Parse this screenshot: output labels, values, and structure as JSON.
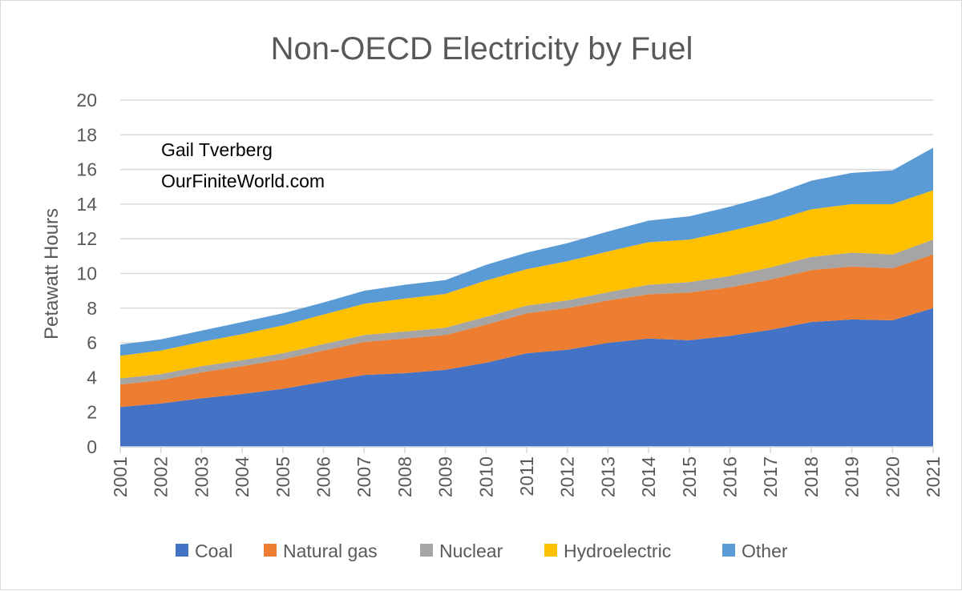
{
  "chart_data": {
    "type": "area",
    "stacked": true,
    "title": "Non-OECD Electricity by Fuel",
    "xlabel": "",
    "ylabel": "Petawatt Hours",
    "ylim": [
      0,
      20
    ],
    "yticks": [
      0,
      2,
      4,
      6,
      8,
      10,
      12,
      14,
      16,
      18,
      20
    ],
    "grid": true,
    "legend_position": "bottom",
    "annotations": [
      "Gail Tverberg",
      "OurFiniteWorld.com"
    ],
    "categories": [
      "2001",
      "2002",
      "2003",
      "2004",
      "2005",
      "2006",
      "2007",
      "2008",
      "2009",
      "2010",
      "2011",
      "2012",
      "2013",
      "2014",
      "2015",
      "2016",
      "2017",
      "2018",
      "2019",
      "2020",
      "2021"
    ],
    "series": [
      {
        "name": "Coal",
        "color": "#4472c4",
        "values": [
          2.3,
          2.5,
          2.8,
          3.05,
          3.35,
          3.75,
          4.15,
          4.25,
          4.45,
          4.85,
          5.4,
          5.6,
          6.0,
          6.25,
          6.15,
          6.4,
          6.75,
          7.2,
          7.35,
          7.3,
          8.0
        ]
      },
      {
        "name": "Natural gas",
        "color": "#ed7d31",
        "values": [
          1.3,
          1.35,
          1.5,
          1.6,
          1.7,
          1.8,
          1.9,
          2.0,
          2.0,
          2.2,
          2.3,
          2.4,
          2.45,
          2.55,
          2.75,
          2.8,
          2.9,
          3.0,
          3.05,
          3.0,
          3.1
        ]
      },
      {
        "name": "Nuclear",
        "color": "#a5a5a5",
        "values": [
          0.35,
          0.35,
          0.35,
          0.35,
          0.35,
          0.38,
          0.4,
          0.4,
          0.42,
          0.45,
          0.45,
          0.45,
          0.47,
          0.55,
          0.6,
          0.65,
          0.7,
          0.75,
          0.8,
          0.8,
          0.85
        ]
      },
      {
        "name": "Hydroelectric",
        "color": "#ffc000",
        "values": [
          1.3,
          1.35,
          1.4,
          1.5,
          1.6,
          1.7,
          1.8,
          1.9,
          1.95,
          2.1,
          2.1,
          2.25,
          2.35,
          2.45,
          2.45,
          2.6,
          2.65,
          2.75,
          2.8,
          2.9,
          2.85
        ]
      },
      {
        "name": "Other",
        "color": "#5b9bd5",
        "values": [
          0.65,
          0.65,
          0.65,
          0.7,
          0.7,
          0.7,
          0.75,
          0.8,
          0.8,
          0.9,
          0.95,
          1.05,
          1.15,
          1.25,
          1.35,
          1.4,
          1.5,
          1.65,
          1.8,
          1.95,
          2.45
        ]
      }
    ]
  }
}
